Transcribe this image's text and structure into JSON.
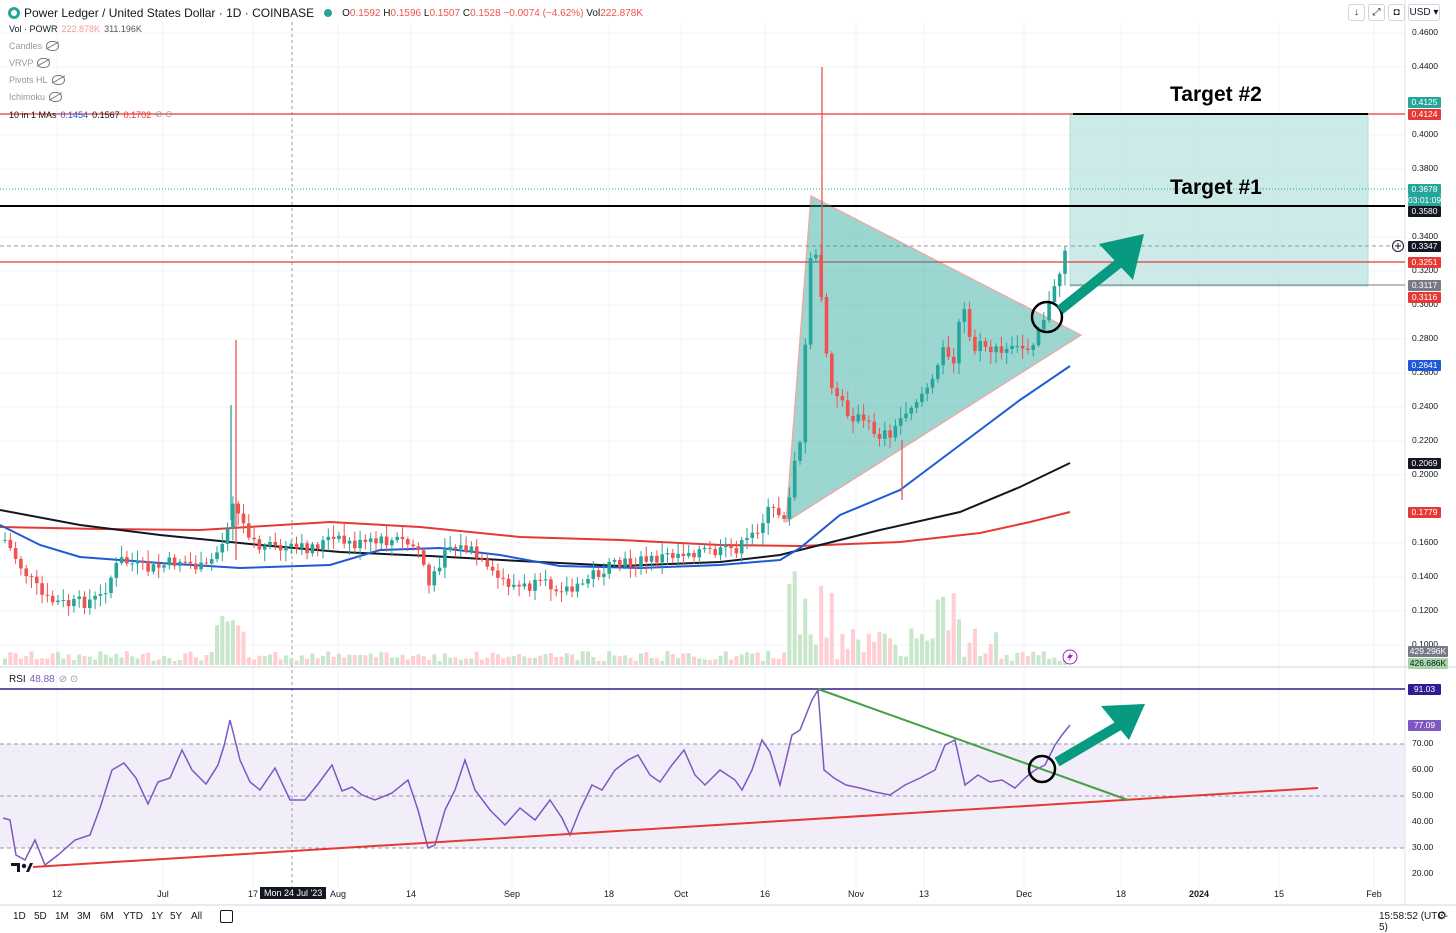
{
  "header": {
    "title": "Power Ledger / United States Dollar · 1D · COINBASE",
    "open_label": "O",
    "open": "0.1592",
    "high_label": "H",
    "high": "0.1596",
    "low_label": "L",
    "low": "0.1507",
    "close_label": "C",
    "close": "0.1528",
    "change": "−0.0074 (−4.62%)",
    "vol_label": "Vol",
    "vol": "222.878K"
  },
  "indicators": {
    "vol_title": "Vol · POWR",
    "vol_value1": "222.878K",
    "vol_value2": "311.196K",
    "candles": "Candles",
    "vrvp": "VRVP",
    "pivots": "Pivots HL",
    "ichimoku": "Ichimoku",
    "mas_title": "10 in 1 MAs",
    "ma1": "0.1454",
    "ma2": "0.1567",
    "ma3": "0.1702"
  },
  "top_right": {
    "currency": "USD"
  },
  "annotations": {
    "target1": "Target #1",
    "target2": "Target #2"
  },
  "price_axis": [
    "0.4600",
    "0.4400",
    "0.4000",
    "0.3800",
    "0.3400",
    "0.3200",
    "0.3000",
    "0.2800",
    "0.2600",
    "0.2400",
    "0.2200",
    "0.2000",
    "0.1600",
    "0.1400",
    "0.1200",
    "0.1000"
  ],
  "price_tags": {
    "t1": "0.4125",
    "t2": "0.4124",
    "last": "0.3678",
    "countdown": "03:01:09",
    "black_line": "0.3580",
    "crosshair": "0.3347",
    "red_line": "0.3251",
    "box_bottom": "0.3117",
    "red2": "0.3116",
    "ma_blue": "0.2641",
    "ma_black": "0.2069",
    "ma_red": "0.1779",
    "vol1": "429.296K",
    "vol2": "426.686K"
  },
  "rsi": {
    "label": "RSI",
    "value": "48.88",
    "axis": [
      "70.00",
      "60.00",
      "50.00",
      "40.00",
      "30.00",
      "20.00"
    ],
    "tag_top": "91.03",
    "tag_cur": "77.09"
  },
  "x_axis": [
    "12",
    "Jul",
    "17",
    "Aug",
    "14",
    "Sep",
    "18",
    "Oct",
    "16",
    "Nov",
    "13",
    "Dec",
    "18",
    "2024",
    "15",
    "Feb"
  ],
  "crosshair_date": "Mon 24 Jul '23",
  "timeframes": [
    "1D",
    "5D",
    "1M",
    "3M",
    "6M",
    "YTD",
    "1Y",
    "5Y",
    "All"
  ],
  "clock": "15:58:52 (UTC-5)",
  "colors": {
    "up": "#26a69a",
    "down": "#ef5350",
    "ma_red": "#e53935",
    "ma_blue": "#1e5ad6",
    "rsi": "#7e57c2",
    "accent": "#089981"
  }
}
